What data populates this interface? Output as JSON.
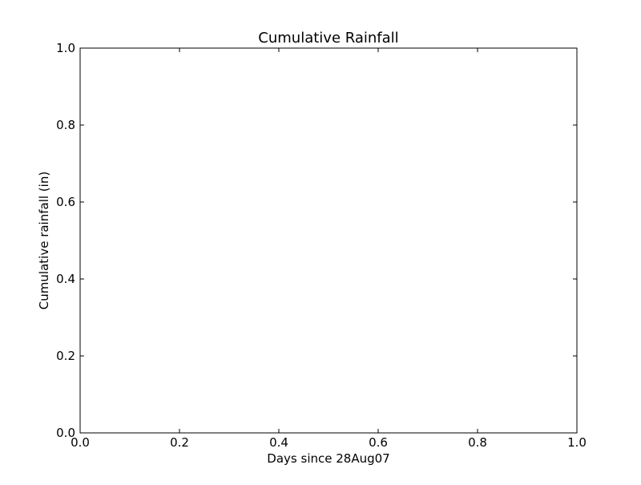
{
  "chart_data": {
    "type": "line",
    "title": "Cumulative Rainfall",
    "xlabel": "Days since 28Aug07",
    "ylabel": "Cumulative rainfall (in)",
    "xlim": [
      0,
      1
    ],
    "ylim": [
      0,
      1
    ],
    "xticks": [
      "0.0",
      "0.2",
      "0.4",
      "0.6",
      "0.8",
      "1.0"
    ],
    "yticks": [
      "0.0",
      "0.2",
      "0.4",
      "0.6",
      "0.8",
      "1.0"
    ],
    "grid": false,
    "series": []
  }
}
